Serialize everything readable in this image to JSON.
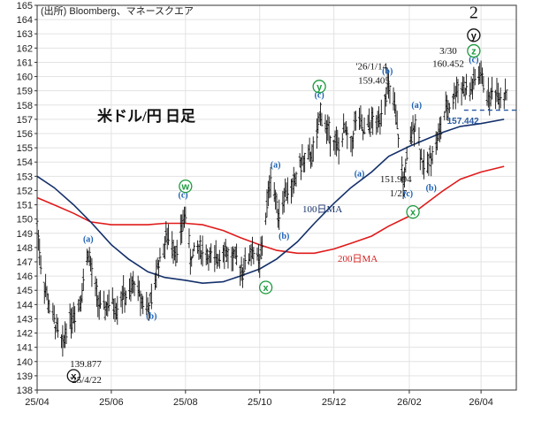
{
  "chart_data": {
    "type": "line",
    "title": "米ドル/円 日足",
    "source": "(出所) Bloomberg、マネースクエア",
    "ylim": [
      138,
      165
    ],
    "yticks": [
      138,
      139,
      140,
      141,
      142,
      143,
      144,
      145,
      146,
      147,
      148,
      149,
      150,
      151,
      152,
      153,
      154,
      155,
      156,
      157,
      158,
      159,
      160,
      161,
      162,
      163,
      164,
      165
    ],
    "x_range": [
      "2025-04-01",
      "2026-04-30"
    ],
    "xticks": [
      {
        "label": "25/04",
        "date": "2025-04-01"
      },
      {
        "label": "25/06",
        "date": "2025-06-01"
      },
      {
        "label": "25/08",
        "date": "2025-08-01"
      },
      {
        "label": "25/10",
        "date": "2025-10-01"
      },
      {
        "label": "25/12",
        "date": "2025-12-01"
      },
      {
        "label": "26/02",
        "date": "2026-02-01"
      },
      {
        "label": "26/04",
        "date": "2026-04-01"
      }
    ],
    "price_path": [
      [
        "2025-04-01",
        149.9
      ],
      [
        "2025-04-04",
        146.8
      ],
      [
        "2025-04-09",
        144.6
      ],
      [
        "2025-04-12",
        143.5
      ],
      [
        "2025-04-16",
        142.6
      ],
      [
        "2025-04-22",
        141.0
      ],
      [
        "2025-04-25",
        142.5
      ],
      [
        "2025-04-30",
        143.2
      ],
      [
        "2025-05-06",
        144.2
      ],
      [
        "2025-05-09",
        145.6
      ],
      [
        "2025-05-13",
        147.8
      ],
      [
        "2025-05-17",
        145.6
      ],
      [
        "2025-05-24",
        143.4
      ],
      [
        "2025-05-31",
        144.2
      ],
      [
        "2025-06-05",
        143.8
      ],
      [
        "2025-06-10",
        144.7
      ],
      [
        "2025-06-15",
        144.4
      ],
      [
        "2025-06-20",
        145.6
      ],
      [
        "2025-06-25",
        144.5
      ],
      [
        "2025-07-01",
        143.8
      ],
      [
        "2025-07-05",
        144.3
      ],
      [
        "2025-07-09",
        146.8
      ],
      [
        "2025-07-12",
        147.4
      ],
      [
        "2025-07-16",
        148.6
      ],
      [
        "2025-07-20",
        148.6
      ],
      [
        "2025-07-25",
        147.6
      ],
      [
        "2025-08-01",
        150.6
      ],
      [
        "2025-08-05",
        147.2
      ],
      [
        "2025-08-11",
        148.0
      ],
      [
        "2025-08-18",
        147.6
      ],
      [
        "2025-08-25",
        146.9
      ],
      [
        "2025-09-01",
        148.1
      ],
      [
        "2025-09-05",
        147.4
      ],
      [
        "2025-09-10",
        147.2
      ],
      [
        "2025-09-17",
        146.5
      ],
      [
        "2025-09-25",
        147.9
      ],
      [
        "2025-10-01",
        146.8
      ],
      [
        "2025-10-05",
        149.5
      ],
      [
        "2025-10-10",
        153.0
      ],
      [
        "2025-10-14",
        151.4
      ],
      [
        "2025-10-17",
        150.4
      ],
      [
        "2025-10-22",
        151.9
      ],
      [
        "2025-10-28",
        152.1
      ],
      [
        "2025-11-03",
        153.9
      ],
      [
        "2025-11-10",
        154.2
      ],
      [
        "2025-11-16",
        155.0
      ],
      [
        "2025-11-20",
        157.6
      ],
      [
        "2025-11-25",
        156.3
      ],
      [
        "2025-12-01",
        155.6
      ],
      [
        "2025-12-05",
        154.9
      ],
      [
        "2025-12-10",
        156.3
      ],
      [
        "2025-12-15",
        155.0
      ],
      [
        "2025-12-20",
        157.5
      ],
      [
        "2025-12-25",
        156.0
      ],
      [
        "2026-01-01",
        156.8
      ],
      [
        "2026-01-06",
        156.6
      ],
      [
        "2026-01-10",
        158.0
      ],
      [
        "2026-01-14",
        159.3
      ],
      [
        "2026-01-19",
        158.1
      ],
      [
        "2026-01-23",
        155.8
      ],
      [
        "2026-01-27",
        152.5
      ],
      [
        "2026-01-31",
        154.6
      ],
      [
        "2026-02-06",
        157.1
      ],
      [
        "2026-02-10",
        154.9
      ],
      [
        "2026-02-14",
        153.0
      ],
      [
        "2026-02-18",
        154.4
      ],
      [
        "2026-02-22",
        155.0
      ],
      [
        "2026-02-27",
        156.4
      ],
      [
        "2026-03-03",
        157.6
      ],
      [
        "2026-03-08",
        158.2
      ],
      [
        "2026-03-12",
        159.2
      ],
      [
        "2026-03-17",
        159.3
      ],
      [
        "2026-03-22",
        158.8
      ],
      [
        "2026-03-27",
        159.7
      ],
      [
        "2026-03-31",
        160.2
      ],
      [
        "2026-04-04",
        159.3
      ],
      [
        "2026-04-08",
        158.4
      ],
      [
        "2026-04-12",
        159.1
      ],
      [
        "2026-04-16",
        158.7
      ],
      [
        "2026-04-22",
        158.9
      ]
    ],
    "ma100": [
      [
        "2025-04-01",
        153.0
      ],
      [
        "2025-04-15",
        152.2
      ],
      [
        "2025-05-01",
        151.0
      ],
      [
        "2025-05-15",
        149.8
      ],
      [
        "2025-06-01",
        148.2
      ],
      [
        "2025-06-15",
        147.2
      ],
      [
        "2025-07-01",
        146.3
      ],
      [
        "2025-07-15",
        145.9
      ],
      [
        "2025-08-01",
        145.7
      ],
      [
        "2025-08-15",
        145.5
      ],
      [
        "2025-09-01",
        145.6
      ],
      [
        "2025-09-15",
        146.0
      ],
      [
        "2025-10-01",
        146.5
      ],
      [
        "2025-10-15",
        147.2
      ],
      [
        "2025-11-01",
        148.4
      ],
      [
        "2025-11-15",
        149.7
      ],
      [
        "2025-12-01",
        151.1
      ],
      [
        "2025-12-15",
        152.2
      ],
      [
        "2026-01-01",
        153.3
      ],
      [
        "2026-01-15",
        154.4
      ],
      [
        "2026-02-01",
        155.1
      ],
      [
        "2026-02-15",
        155.6
      ],
      [
        "2026-03-01",
        156.1
      ],
      [
        "2026-03-15",
        156.5
      ],
      [
        "2026-04-01",
        156.7
      ],
      [
        "2026-04-20",
        157.0
      ]
    ],
    "ma200": [
      [
        "2025-04-01",
        151.5
      ],
      [
        "2025-04-15",
        151.0
      ],
      [
        "2025-05-01",
        150.4
      ],
      [
        "2025-05-15",
        149.8
      ],
      [
        "2025-06-01",
        149.6
      ],
      [
        "2025-06-15",
        149.6
      ],
      [
        "2025-07-01",
        149.6
      ],
      [
        "2025-07-15",
        149.7
      ],
      [
        "2025-08-01",
        149.7
      ],
      [
        "2025-08-15",
        149.6
      ],
      [
        "2025-09-01",
        149.2
      ],
      [
        "2025-09-15",
        148.7
      ],
      [
        "2025-10-01",
        148.2
      ],
      [
        "2025-10-15",
        147.8
      ],
      [
        "2025-11-01",
        147.6
      ],
      [
        "2025-11-15",
        147.6
      ],
      [
        "2025-12-01",
        147.9
      ],
      [
        "2025-12-15",
        148.3
      ],
      [
        "2026-01-01",
        148.8
      ],
      [
        "2026-01-15",
        149.5
      ],
      [
        "2026-02-01",
        150.2
      ],
      [
        "2026-02-15",
        151.1
      ],
      [
        "2026-03-01",
        152.0
      ],
      [
        "2026-03-15",
        152.8
      ],
      [
        "2026-04-01",
        153.3
      ],
      [
        "2026-04-20",
        153.7
      ]
    ],
    "ma100_label": "100日MA",
    "ma200_label": "200日MA",
    "price_label": {
      "value": 157.442,
      "text": "157.442"
    },
    "annotations": [
      {
        "date": "2025-05-13",
        "y": 148.4,
        "text": "(a)",
        "kind": "wave"
      },
      {
        "date": "2025-07-04",
        "y": 143.0,
        "text": "(b)",
        "kind": "wave"
      },
      {
        "date": "2025-07-30",
        "y": 151.5,
        "text": "(c)",
        "kind": "wave"
      },
      {
        "date": "2025-10-14",
        "y": 153.6,
        "text": "(a)",
        "kind": "wave"
      },
      {
        "date": "2025-10-21",
        "y": 148.6,
        "text": "(b)",
        "kind": "wave"
      },
      {
        "date": "2025-11-19",
        "y": 158.5,
        "text": "(c)",
        "kind": "wave"
      },
      {
        "date": "2025-12-22",
        "y": 153.0,
        "text": "(a)",
        "kind": "wave"
      },
      {
        "date": "2026-01-14",
        "y": 160.2,
        "text": "(b)",
        "kind": "wave"
      },
      {
        "date": "2026-01-31",
        "y": 151.6,
        "text": "(c)",
        "kind": "wave"
      },
      {
        "date": "2026-02-07",
        "y": 157.8,
        "text": "(a)",
        "kind": "wave"
      },
      {
        "date": "2026-02-19",
        "y": 152.0,
        "text": "(b)",
        "kind": "wave"
      },
      {
        "date": "2026-03-26",
        "y": 161.0,
        "text": "(c)",
        "kind": "wave"
      },
      {
        "date": "2025-08-01",
        "y": 152.3,
        "text": "w",
        "kind": "circle-green"
      },
      {
        "date": "2025-11-19",
        "y": 159.3,
        "text": "y",
        "kind": "circle-green"
      },
      {
        "date": "2025-10-06",
        "y": 145.2,
        "text": "x",
        "kind": "circle-green"
      },
      {
        "date": "2026-02-04",
        "y": 150.5,
        "text": "x",
        "kind": "circle-green"
      },
      {
        "date": "2026-03-26",
        "y": 161.8,
        "text": "z",
        "kind": "circle-green"
      },
      {
        "date": "2026-03-26",
        "y": 162.9,
        "text": "y",
        "kind": "circle-black"
      },
      {
        "date": "2025-05-01",
        "y": 139.0,
        "text": "x",
        "kind": "circle-black"
      }
    ],
    "big_label": {
      "date": "2026-03-26",
      "y": 164.1,
      "text": "2"
    },
    "text_notes": [
      {
        "date": "2025-05-11",
        "y": 139.6,
        "text": "139.877"
      },
      {
        "date": "2025-05-11",
        "y": 138.5,
        "text": "'25/4/22"
      },
      {
        "date": "2026-01-01",
        "y": 160.5,
        "text": "'26/1/14"
      },
      {
        "date": "2026-01-03",
        "y": 159.5,
        "text": "159.405"
      },
      {
        "date": "2026-01-21",
        "y": 152.6,
        "text": "151.994"
      },
      {
        "date": "2026-01-23",
        "y": 151.6,
        "text": "1/27"
      },
      {
        "date": "2026-03-05",
        "y": 161.6,
        "text": "3/30"
      },
      {
        "date": "2026-03-05",
        "y": 160.7,
        "text": "160.452"
      }
    ]
  }
}
